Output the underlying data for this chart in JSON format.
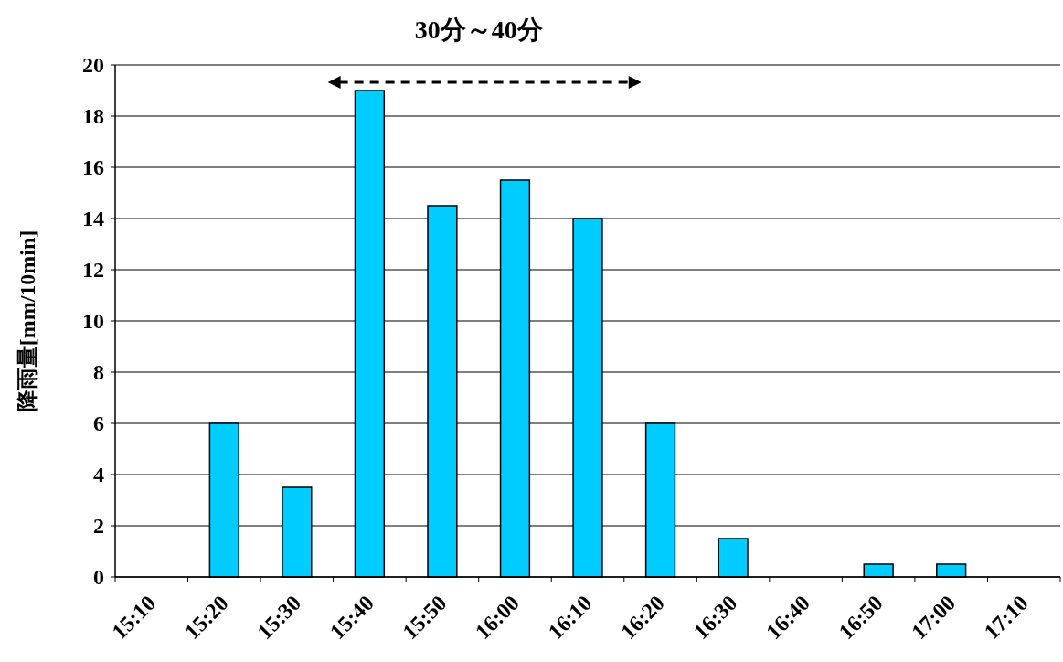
{
  "chart_data": {
    "type": "bar",
    "title": "30分～40分",
    "ylabel": "降雨量[mm/10min]",
    "categories": [
      "15:10",
      "15:20",
      "15:30",
      "15:40",
      "15:50",
      "16:00",
      "16:10",
      "16:20",
      "16:30",
      "16:40",
      "16:50",
      "17:00",
      "17:10"
    ],
    "values": [
      0,
      6,
      3.5,
      19,
      14.5,
      15.5,
      14,
      6,
      1.5,
      0,
      0.5,
      0.5,
      0
    ],
    "color": "#00ccff",
    "ylim": [
      0,
      20
    ],
    "yticks": [
      0,
      2,
      4,
      6,
      8,
      10,
      12,
      14,
      16,
      18,
      20
    ],
    "grid": "y"
  }
}
